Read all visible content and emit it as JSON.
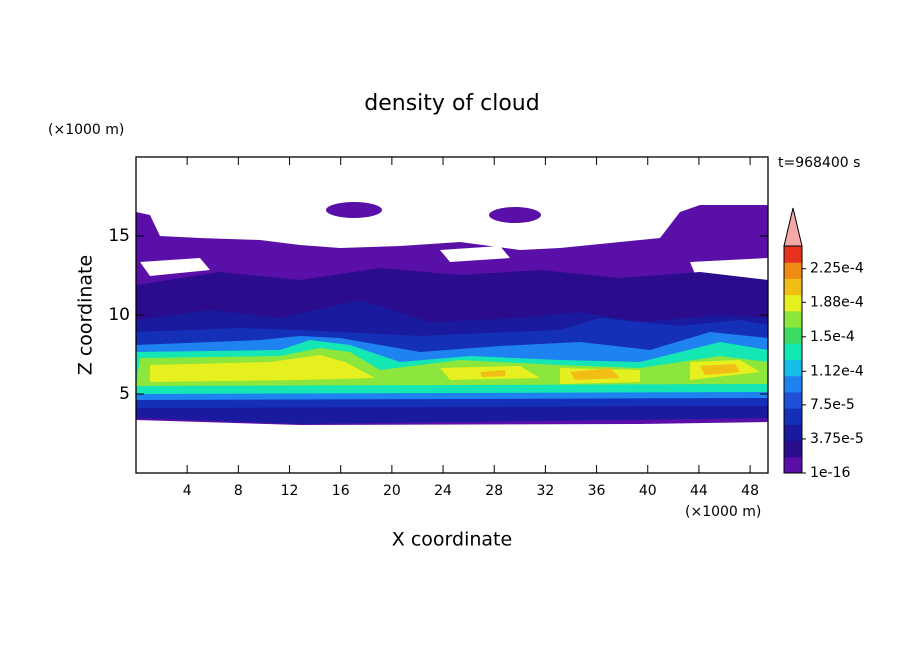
{
  "chart_data": {
    "type": "contour",
    "title": "density of cloud",
    "x_label": "X coordinate",
    "y_label": "Z coordinate",
    "x_unit": "(×1000 m)",
    "y_unit": "(×1000 m)",
    "annotation": "t=968400 s",
    "xlim": [
      0,
      49.4
    ],
    "ylim": [
      0,
      20
    ],
    "xticks": [
      4,
      8,
      12,
      16,
      20,
      24,
      28,
      32,
      36,
      40,
      44,
      48
    ],
    "yticks": [
      5,
      10,
      15
    ],
    "clim": [
      0,
      0.00025
    ],
    "colorbar_ticks": [
      {
        "value": 1e-16,
        "label": "1e-16"
      },
      {
        "value": 3.75e-05,
        "label": "3.75e-5"
      },
      {
        "value": 7.5e-05,
        "label": "7.5e-5"
      },
      {
        "value": 0.000112,
        "label": "1.12e-4"
      },
      {
        "value": 0.00015,
        "label": "1.5e-4"
      },
      {
        "value": 0.000188,
        "label": "1.88e-4"
      },
      {
        "value": 0.000225,
        "label": "2.25e-4"
      }
    ],
    "colors": [
      "#5a10a8",
      "#2a0c8c",
      "#1a1a9e",
      "#1430b8",
      "#1e50d8",
      "#1e82f0",
      "#14bee8",
      "#14e6b4",
      "#3cdc64",
      "#8ce63c",
      "#e6f01e",
      "#f0be14",
      "#f08c14",
      "#e6321e"
    ],
    "extend_color": "#f4a8a8"
  }
}
